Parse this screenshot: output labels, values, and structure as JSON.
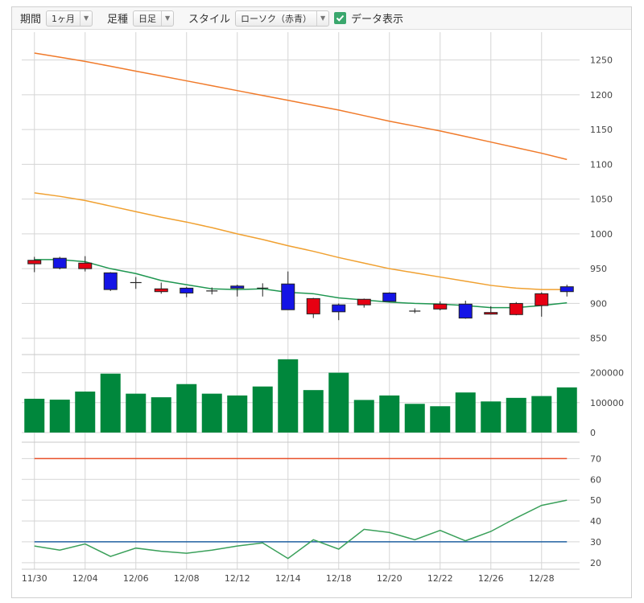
{
  "toolbar": {
    "period_label": "期間",
    "period_value": "1ヶ月",
    "foot_label": "足種",
    "foot_value": "日足",
    "style_label": "スタイル",
    "style_value": "ローソク（赤青）",
    "show_data_label": "データ表示",
    "show_data_checked": true
  },
  "colors": {
    "up": "#e60012",
    "down": "#1414e6",
    "volume": "#00873c",
    "ma_short": "#1e9650",
    "ma_mid": "#f0a030",
    "ma_long": "#f07a2a",
    "rsi": "#3aa05a",
    "rsi_upper": "#e8502a",
    "rsi_lower": "#2060a0",
    "grid": "#d5d5d5"
  },
  "chart_data": [
    {
      "type": "candlestick",
      "panel": "price",
      "ylim": [
        830,
        1290
      ],
      "y_ticks": [
        "1250",
        "1200",
        "1150",
        "1100",
        "1050",
        "1000",
        "950",
        "900",
        "850"
      ],
      "y_tick_values": [
        1250,
        1200,
        1150,
        1100,
        1050,
        1000,
        950,
        900,
        850
      ],
      "x_ticks": [
        "11/30",
        "12/04",
        "12/06",
        "12/08",
        "12/12",
        "12/14",
        "12/18",
        "12/20",
        "12/22",
        "12/26",
        "12/28"
      ],
      "candles": [
        {
          "open": 957,
          "close": 962,
          "high": 967,
          "low": 945
        },
        {
          "open": 965,
          "close": 951,
          "high": 967,
          "low": 949
        },
        {
          "open": 950,
          "close": 958,
          "high": 968,
          "low": 946
        },
        {
          "open": 944,
          "close": 920,
          "high": 945,
          "low": 918
        },
        {
          "open": 930,
          "close": 930,
          "high": 938,
          "low": 921
        },
        {
          "open": 917,
          "close": 921,
          "high": 930,
          "low": 914
        },
        {
          "open": 922,
          "close": 915,
          "high": 924,
          "low": 909
        },
        {
          "open": 918,
          "close": 918,
          "high": 923,
          "low": 913
        },
        {
          "open": 925,
          "close": 922,
          "high": 927,
          "low": 910
        },
        {
          "open": 922,
          "close": 922,
          "high": 929,
          "low": 910
        },
        {
          "open": 928,
          "close": 891,
          "high": 946,
          "low": 891
        },
        {
          "open": 885,
          "close": 907,
          "high": 908,
          "low": 879
        },
        {
          "open": 898,
          "close": 888,
          "high": 900,
          "low": 876
        },
        {
          "open": 898,
          "close": 906,
          "high": 907,
          "low": 894
        },
        {
          "open": 915,
          "close": 903,
          "high": 916,
          "low": 902
        },
        {
          "open": 889,
          "close": 889,
          "high": 893,
          "low": 886
        },
        {
          "open": 892,
          "close": 899,
          "high": 903,
          "low": 890
        },
        {
          "open": 899,
          "close": 879,
          "high": 904,
          "low": 878
        },
        {
          "open": 885,
          "close": 887,
          "high": 896,
          "low": 884
        },
        {
          "open": 884,
          "close": 900,
          "high": 902,
          "low": 883
        },
        {
          "open": 897,
          "close": 914,
          "high": 916,
          "low": 881
        },
        {
          "open": 924,
          "close": 917,
          "high": 927,
          "low": 910
        }
      ],
      "ma_short": [
        963,
        963,
        960,
        950,
        943,
        933,
        927,
        921,
        920,
        921,
        916,
        914,
        908,
        905,
        902,
        900,
        899,
        897,
        894,
        894,
        897,
        901
      ],
      "ma_mid": [
        1059,
        1054,
        1048,
        1040,
        1032,
        1024,
        1017,
        1009,
        1000,
        992,
        983,
        975,
        966,
        958,
        950,
        944,
        938,
        932,
        926,
        922,
        920,
        920
      ],
      "ma_long": [
        1260,
        1254,
        1248,
        1241,
        1234,
        1227,
        1220,
        1213,
        1206,
        1199,
        1192,
        1185,
        1178,
        1170,
        1162,
        1155,
        1148,
        1140,
        1132,
        1124,
        1116,
        1107
      ]
    },
    {
      "type": "bar",
      "panel": "volume",
      "ylim": [
        0,
        250000
      ],
      "y_ticks": [
        "200000",
        "100000",
        "0"
      ],
      "y_tick_values": [
        200000,
        100000,
        0
      ],
      "values": [
        113000,
        110000,
        137000,
        197000,
        130000,
        118000,
        162000,
        130000,
        124000,
        154000,
        245000,
        142000,
        200000,
        109000,
        124000,
        96000,
        88000,
        134000,
        104000,
        116000,
        122000,
        151000
      ]
    },
    {
      "type": "line",
      "panel": "rsi",
      "ylim": [
        18,
        74
      ],
      "y_ticks": [
        "70",
        "60",
        "50",
        "40",
        "30",
        "20"
      ],
      "y_tick_values": [
        70,
        60,
        50,
        40,
        30,
        20
      ],
      "values": [
        28,
        26,
        29,
        23,
        27,
        25.5,
        24.5,
        26,
        28,
        29.5,
        22,
        31,
        26.5,
        36,
        34.5,
        31,
        35.5,
        30.5,
        35,
        41.5,
        47.5,
        50
      ],
      "upper_line": 70,
      "lower_line": 30
    }
  ]
}
